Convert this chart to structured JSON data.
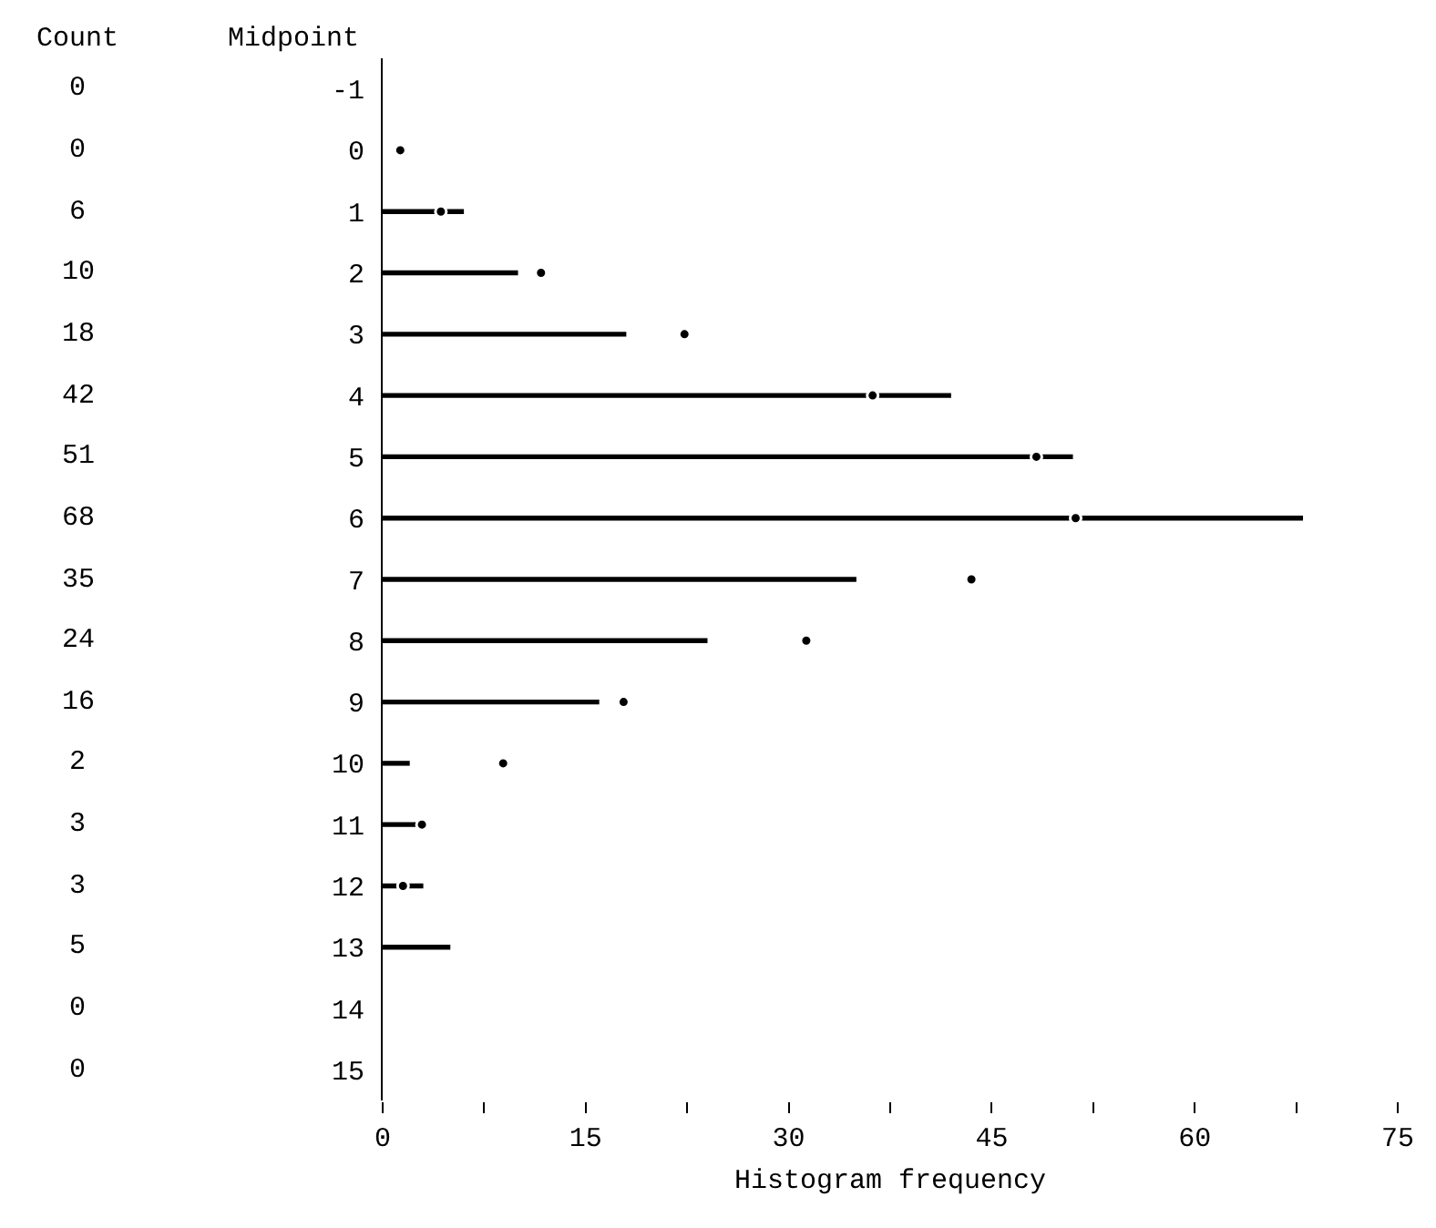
{
  "chart_data": {
    "type": "bar",
    "orientation": "horizontal",
    "xlabel": "Histogram frequency",
    "ylabel": "Midpoint",
    "annotations": [
      "Count"
    ],
    "categories": [
      "-1",
      "0",
      "1",
      "2",
      "3",
      "4",
      "5",
      "6",
      "7",
      "8",
      "9",
      "10",
      "11",
      "12",
      "13",
      "14",
      "15"
    ],
    "series": [
      {
        "color": "#000000",
        "values": [
          0,
          0,
          6,
          10,
          18,
          42,
          51,
          68,
          35,
          24,
          16,
          2,
          3,
          3,
          5,
          0,
          0
        ],
        "value_labels": [
          "0",
          "0",
          "6",
          "10",
          "18",
          "42",
          "51",
          "68",
          "35",
          "24",
          "16",
          "2",
          "3",
          "3",
          "5",
          "0",
          "0"
        ]
      },
      {
        "type": "scatter",
        "color": "#000000",
        "marker": "circle",
        "values": [
          null,
          1.3,
          4.3,
          11.7,
          22.3,
          36.2,
          48.3,
          51.2,
          43.5,
          31.3,
          17.8,
          8.9,
          2.9,
          1.5,
          null,
          null,
          null
        ]
      }
    ],
    "xlim": [
      0,
      75
    ],
    "xticks": [
      0,
      {
        "value": 7.5,
        "label": null
      },
      15,
      {
        "value": 22.5,
        "label": null
      },
      30,
      {
        "value": 37.5,
        "label": null
      },
      45,
      {
        "value": 52.5,
        "label": null
      },
      60,
      {
        "value": 67.5,
        "label": null
      },
      75
    ],
    "grid": false
  }
}
